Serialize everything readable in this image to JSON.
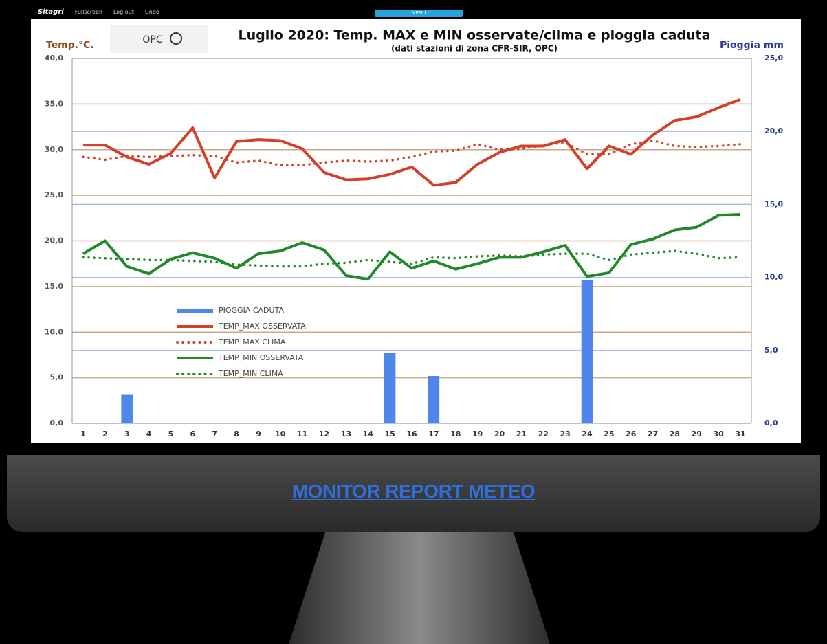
{
  "topbar": {
    "brand": "Sitagri",
    "items": [
      "Fullscreen",
      "Log out",
      "Undo"
    ],
    "menu": "MENU"
  },
  "link": "MONITOR REPORT METEO",
  "chart_data": {
    "type": "line",
    "title": "Luglio 2020: Temp. MAX e MIN osservate/clima e pioggia caduta",
    "subtitle": "(dati stazioni di zona CFR-SIR, OPC)",
    "logo": "OPC",
    "ylabel": "Temp.°C.",
    "y2label": "Pioggia mm",
    "categories": [
      "1",
      "2",
      "3",
      "4",
      "5",
      "6",
      "7",
      "8",
      "9",
      "10",
      "11",
      "12",
      "13",
      "14",
      "15",
      "16",
      "17",
      "18",
      "19",
      "20",
      "21",
      "22",
      "23",
      "24",
      "25",
      "26",
      "27",
      "28",
      "29",
      "30",
      "31"
    ],
    "ylim": [
      0,
      40
    ],
    "yticks": [
      {
        "value": 0,
        "label": "0,0"
      },
      {
        "value": 5,
        "label": "5,0"
      },
      {
        "value": 10,
        "label": "10,0"
      },
      {
        "value": 15,
        "label": "15,0"
      },
      {
        "value": 20,
        "label": "20,0"
      },
      {
        "value": 25,
        "label": "25,0"
      },
      {
        "value": 30,
        "label": "30,0"
      },
      {
        "value": 35,
        "label": "35,0"
      },
      {
        "value": 40,
        "label": "40,0"
      }
    ],
    "y2lim": [
      0,
      25
    ],
    "y2ticks": [
      {
        "value": 0,
        "label": "0,0"
      },
      {
        "value": 5,
        "label": "5,0"
      },
      {
        "value": 10,
        "label": "10,0"
      },
      {
        "value": 15,
        "label": "15,0"
      },
      {
        "value": 20,
        "label": "20,0"
      },
      {
        "value": 25,
        "label": "25,0"
      }
    ],
    "grid": true,
    "grid_color": "#c9ab8c",
    "grid2_color": "#a9bde6",
    "legend": "left",
    "series": [
      {
        "name": "PIOGGIA CADUTA",
        "type": "bar",
        "axis": "y2",
        "color": "#4f86ec",
        "values": [
          0,
          0,
          2.0,
          0,
          0,
          0,
          0,
          0,
          0,
          0,
          0,
          0,
          0,
          0,
          4.85,
          0,
          3.25,
          0,
          0,
          0,
          0,
          0,
          0,
          9.8,
          0,
          0,
          0,
          0,
          0,
          0,
          0
        ]
      },
      {
        "name": "TEMP_MAX OSSERVATA",
        "type": "line",
        "style": "solid",
        "color": "#d3402a",
        "values": [
          30.5,
          30.5,
          29.2,
          28.4,
          29.6,
          32.4,
          26.9,
          30.9,
          31.1,
          31.0,
          30.1,
          27.5,
          26.7,
          26.8,
          27.3,
          28.1,
          26.1,
          26.4,
          28.4,
          29.7,
          30.4,
          30.4,
          31.1,
          27.9,
          30.4,
          29.5,
          31.6,
          33.2,
          33.6,
          34.6,
          35.5
        ]
      },
      {
        "name": "TEMP_MAX CLIMA",
        "type": "line",
        "style": "dotted",
        "color": "#d3402a",
        "values": [
          29.2,
          28.9,
          29.3,
          29.2,
          29.3,
          29.4,
          29.3,
          28.6,
          28.8,
          28.3,
          28.3,
          28.6,
          28.8,
          28.7,
          28.8,
          29.2,
          29.8,
          29.9,
          30.6,
          30.0,
          30.1,
          30.5,
          30.8,
          29.5,
          29.5,
          30.6,
          31.0,
          30.4,
          30.3,
          30.4,
          30.6
        ]
      },
      {
        "name": "TEMP_MIN OSSERVATA",
        "type": "line",
        "style": "solid",
        "color": "#208a2b",
        "values": [
          18.6,
          20.0,
          17.2,
          16.4,
          18.0,
          18.7,
          18.1,
          17.0,
          18.6,
          18.9,
          19.8,
          19.0,
          16.2,
          15.8,
          18.8,
          17.0,
          17.8,
          16.9,
          17.5,
          18.2,
          18.2,
          18.8,
          19.5,
          16.1,
          16.5,
          19.6,
          20.2,
          21.2,
          21.5,
          22.8,
          22.9
        ]
      },
      {
        "name": "TEMP_MIN CLIMA",
        "type": "line",
        "style": "dotted",
        "color": "#208a2b",
        "values": [
          18.2,
          18.1,
          18.0,
          17.9,
          17.9,
          17.8,
          17.7,
          17.4,
          17.3,
          17.2,
          17.2,
          17.5,
          17.6,
          17.9,
          17.7,
          17.5,
          18.2,
          18.1,
          18.3,
          18.4,
          18.3,
          18.5,
          18.6,
          18.6,
          17.9,
          18.5,
          18.7,
          18.9,
          18.6,
          18.1,
          18.2
        ]
      }
    ]
  }
}
